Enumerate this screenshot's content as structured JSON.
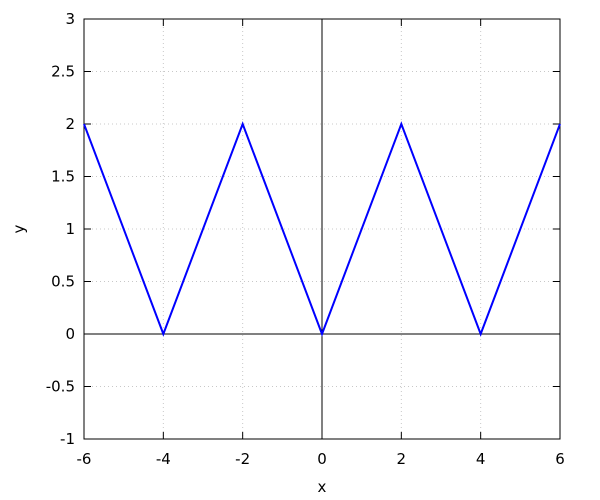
{
  "chart_data": {
    "type": "line",
    "title": "",
    "xlabel": "x",
    "ylabel": "y",
    "xlim": [
      -6,
      6
    ],
    "ylim": [
      -1,
      3
    ],
    "grid": true,
    "zero_axes": true,
    "xticks": [
      "-6",
      "-4",
      "-2",
      "0",
      "2",
      "4",
      "6"
    ],
    "yticks": [
      "-1",
      "-0.5",
      "0",
      "0.5",
      "1",
      "1.5",
      "2",
      "2.5",
      "3"
    ],
    "series": [
      {
        "color": "#0000ff",
        "x": [
          -6,
          -4,
          -2,
          0,
          2,
          4,
          6
        ],
        "y": [
          2,
          0,
          2,
          0,
          2,
          0,
          2
        ]
      }
    ]
  }
}
